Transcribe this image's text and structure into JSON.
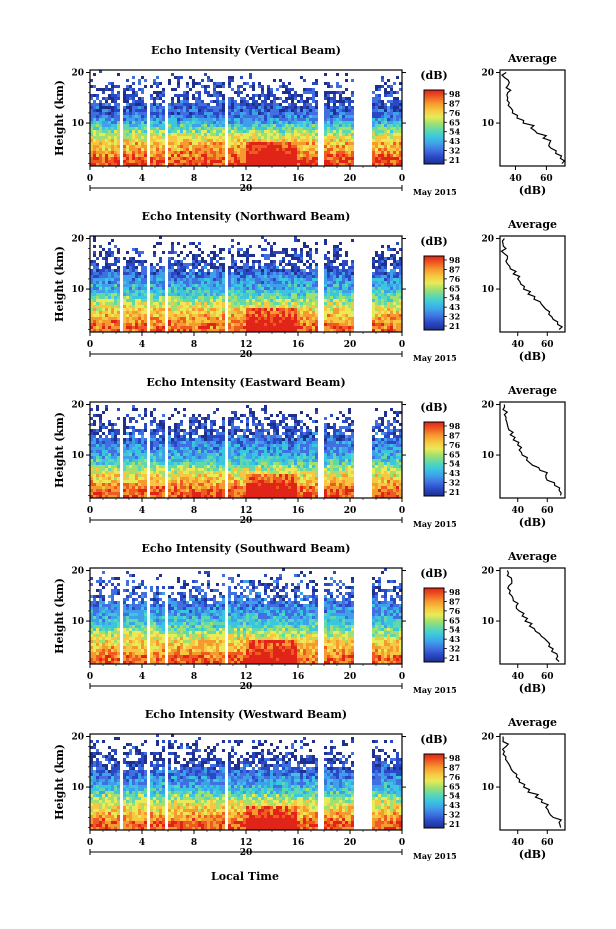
{
  "chart_data": [
    {
      "type": "heatmap",
      "title": "Echo Intensity (Vertical Beam)",
      "ylabel": "Height (km)",
      "yticks": [
        "10",
        "20"
      ],
      "xticks": [
        "0",
        "4",
        "8",
        "12",
        "16",
        "20",
        "0"
      ],
      "date_day": "20",
      "date_suffix": "May 2015",
      "ylim": [
        1.5,
        20.5
      ],
      "xlim": [
        0,
        24
      ],
      "colorbar_unit": "(dB)",
      "colorbar_ticks": [
        "98",
        "87",
        "76",
        "65",
        "54",
        "43",
        "32",
        "21"
      ],
      "gaps": [
        [
          2.3,
          2.6
        ],
        [
          4.3,
          4.6
        ],
        [
          5.7,
          6.0
        ],
        [
          10.3,
          10.6
        ],
        [
          17.6,
          18.0
        ],
        [
          20.4,
          21.6
        ]
      ],
      "profile": {
        "title": "Average",
        "xlabel": "(dB)",
        "xticks": [
          "40",
          "60"
        ],
        "xlim": [
          30,
          72
        ],
        "yticks": [
          "10",
          "20"
        ],
        "height_km": [
          2,
          3,
          4,
          5,
          6,
          7,
          8,
          9,
          10,
          11,
          12,
          13,
          14,
          15,
          16,
          17,
          18,
          19,
          20
        ],
        "intensity_db": [
          70,
          69,
          66,
          63,
          62,
          58,
          54,
          50,
          45,
          41,
          38,
          37,
          36,
          35,
          35,
          34,
          36,
          33,
          34
        ]
      }
    },
    {
      "type": "heatmap",
      "title": "Echo Intensity (Northward Beam)",
      "ylabel": "Height (km)",
      "yticks": [
        "10",
        "20"
      ],
      "xticks": [
        "0",
        "4",
        "8",
        "12",
        "16",
        "20",
        "0"
      ],
      "date_day": "20",
      "date_suffix": "May 2015",
      "ylim": [
        1.5,
        20.5
      ],
      "xlim": [
        0,
        24
      ],
      "colorbar_unit": "(dB)",
      "colorbar_ticks": [
        "98",
        "87",
        "76",
        "65",
        "54",
        "43",
        "32",
        "21"
      ],
      "gaps": [
        [
          2.3,
          2.6
        ],
        [
          4.3,
          4.6
        ],
        [
          5.7,
          6.0
        ],
        [
          10.3,
          10.6
        ],
        [
          17.6,
          18.0
        ],
        [
          20.4,
          21.6
        ]
      ],
      "profile": {
        "title": "Average",
        "xlabel": "(dB)",
        "xticks": [
          "40",
          "60"
        ],
        "xlim": [
          28,
          72
        ],
        "yticks": [
          "10",
          "20"
        ],
        "height_km": [
          2,
          3,
          4,
          5,
          6,
          7,
          8,
          9,
          10,
          11,
          12,
          13,
          14,
          15,
          16,
          17,
          18,
          19,
          20
        ],
        "intensity_db": [
          68,
          67,
          64,
          61,
          59,
          56,
          51,
          47,
          44,
          42,
          40,
          37,
          35,
          33,
          33,
          31,
          32,
          30,
          31
        ]
      }
    },
    {
      "type": "heatmap",
      "title": "Echo Intensity (Eastward Beam)",
      "ylabel": "Height (km)",
      "yticks": [
        "10",
        "20"
      ],
      "xticks": [
        "0",
        "4",
        "8",
        "12",
        "16",
        "20",
        "0"
      ],
      "date_day": "20",
      "date_suffix": "May 2015",
      "ylim": [
        1.5,
        20.5
      ],
      "xlim": [
        0,
        24
      ],
      "colorbar_unit": "(dB)",
      "colorbar_ticks": [
        "98",
        "87",
        "76",
        "65",
        "54",
        "43",
        "32",
        "21"
      ],
      "gaps": [
        [
          2.3,
          2.6
        ],
        [
          4.3,
          4.6
        ],
        [
          5.7,
          6.0
        ],
        [
          10.3,
          10.6
        ],
        [
          17.6,
          18.0
        ],
        [
          20.4,
          21.6
        ]
      ],
      "profile": {
        "title": "Average",
        "xlabel": "(dB)",
        "xticks": [
          "40",
          "60"
        ],
        "xlim": [
          28,
          72
        ],
        "yticks": [
          "10",
          "20"
        ],
        "height_km": [
          2,
          3,
          4,
          5,
          6,
          7,
          8,
          9,
          10,
          11,
          12,
          13,
          14,
          15,
          16,
          17,
          18,
          19,
          20
        ],
        "intensity_db": [
          69,
          68,
          65,
          60,
          59,
          55,
          50,
          46,
          43,
          41,
          40,
          37,
          35,
          34,
          33,
          32,
          31,
          30,
          31
        ]
      }
    },
    {
      "type": "heatmap",
      "title": "Echo Intensity (Southward Beam)",
      "ylabel": "Height (km)",
      "yticks": [
        "10",
        "20"
      ],
      "xticks": [
        "0",
        "4",
        "8",
        "12",
        "16",
        "20",
        "0"
      ],
      "date_day": "20",
      "date_suffix": "May 2015",
      "ylim": [
        1.5,
        20.5
      ],
      "xlim": [
        0,
        24
      ],
      "colorbar_unit": "(dB)",
      "colorbar_ticks": [
        "98",
        "87",
        "76",
        "65",
        "54",
        "43",
        "32",
        "21"
      ],
      "gaps": [
        [
          2.3,
          2.6
        ],
        [
          4.3,
          4.6
        ],
        [
          5.7,
          6.0
        ],
        [
          10.3,
          10.6
        ],
        [
          17.6,
          18.0
        ],
        [
          20.4,
          21.6
        ]
      ],
      "profile": {
        "title": "Average",
        "xlabel": "(dB)",
        "xticks": [
          "40",
          "60"
        ],
        "xlim": [
          28,
          72
        ],
        "yticks": [
          "10",
          "20"
        ],
        "height_km": [
          2,
          3,
          4,
          5,
          6,
          7,
          8,
          9,
          10,
          11,
          12,
          13,
          14,
          15,
          16,
          17,
          18,
          19,
          20
        ],
        "intensity_db": [
          68,
          67,
          63,
          61,
          60,
          56,
          52,
          48,
          45,
          43,
          41,
          39,
          37,
          36,
          35,
          34,
          36,
          33,
          33
        ]
      }
    },
    {
      "type": "heatmap",
      "title": "Echo Intensity (Westward Beam)",
      "ylabel": "Height (km)",
      "yticks": [
        "10",
        "20"
      ],
      "xticks": [
        "0",
        "4",
        "8",
        "12",
        "16",
        "20",
        "0"
      ],
      "date_day": "20",
      "date_suffix": "May 2015",
      "ylim": [
        1.5,
        20.5
      ],
      "xlim": [
        0,
        24
      ],
      "colorbar_unit": "(dB)",
      "colorbar_ticks": [
        "98",
        "87",
        "76",
        "65",
        "54",
        "43",
        "32",
        "21"
      ],
      "gaps": [
        [
          2.3,
          2.6
        ],
        [
          4.3,
          4.6
        ],
        [
          5.7,
          6.0
        ],
        [
          10.3,
          10.6
        ],
        [
          17.6,
          18.0
        ],
        [
          20.4,
          21.6
        ]
      ],
      "profile": {
        "title": "Average",
        "xlabel": "(dB)",
        "xticks": [
          "40",
          "60"
        ],
        "xlim": [
          28,
          72
        ],
        "yticks": [
          "10",
          "20"
        ],
        "height_km": [
          2,
          3,
          4,
          5,
          6,
          7,
          8,
          9,
          10,
          11,
          12,
          13,
          14,
          15,
          16,
          17,
          18,
          19,
          20
        ],
        "intensity_db": [
          69,
          68,
          64,
          61,
          59,
          56,
          52,
          47,
          44,
          41,
          39,
          37,
          35,
          33,
          32,
          31,
          32,
          30,
          30
        ]
      }
    }
  ],
  "footer": {
    "xlabel": "Local Time"
  },
  "colors": {
    "colormap": [
      "#1e2f8c",
      "#2948c4",
      "#3f6fe0",
      "#3fa0ea",
      "#3bc6e0",
      "#5fd8b0",
      "#9fe070",
      "#e8ea58",
      "#f7c742",
      "#f59a2e",
      "#ee5a22",
      "#e02418"
    ],
    "axis": "#000000",
    "background": "#ffffff"
  }
}
